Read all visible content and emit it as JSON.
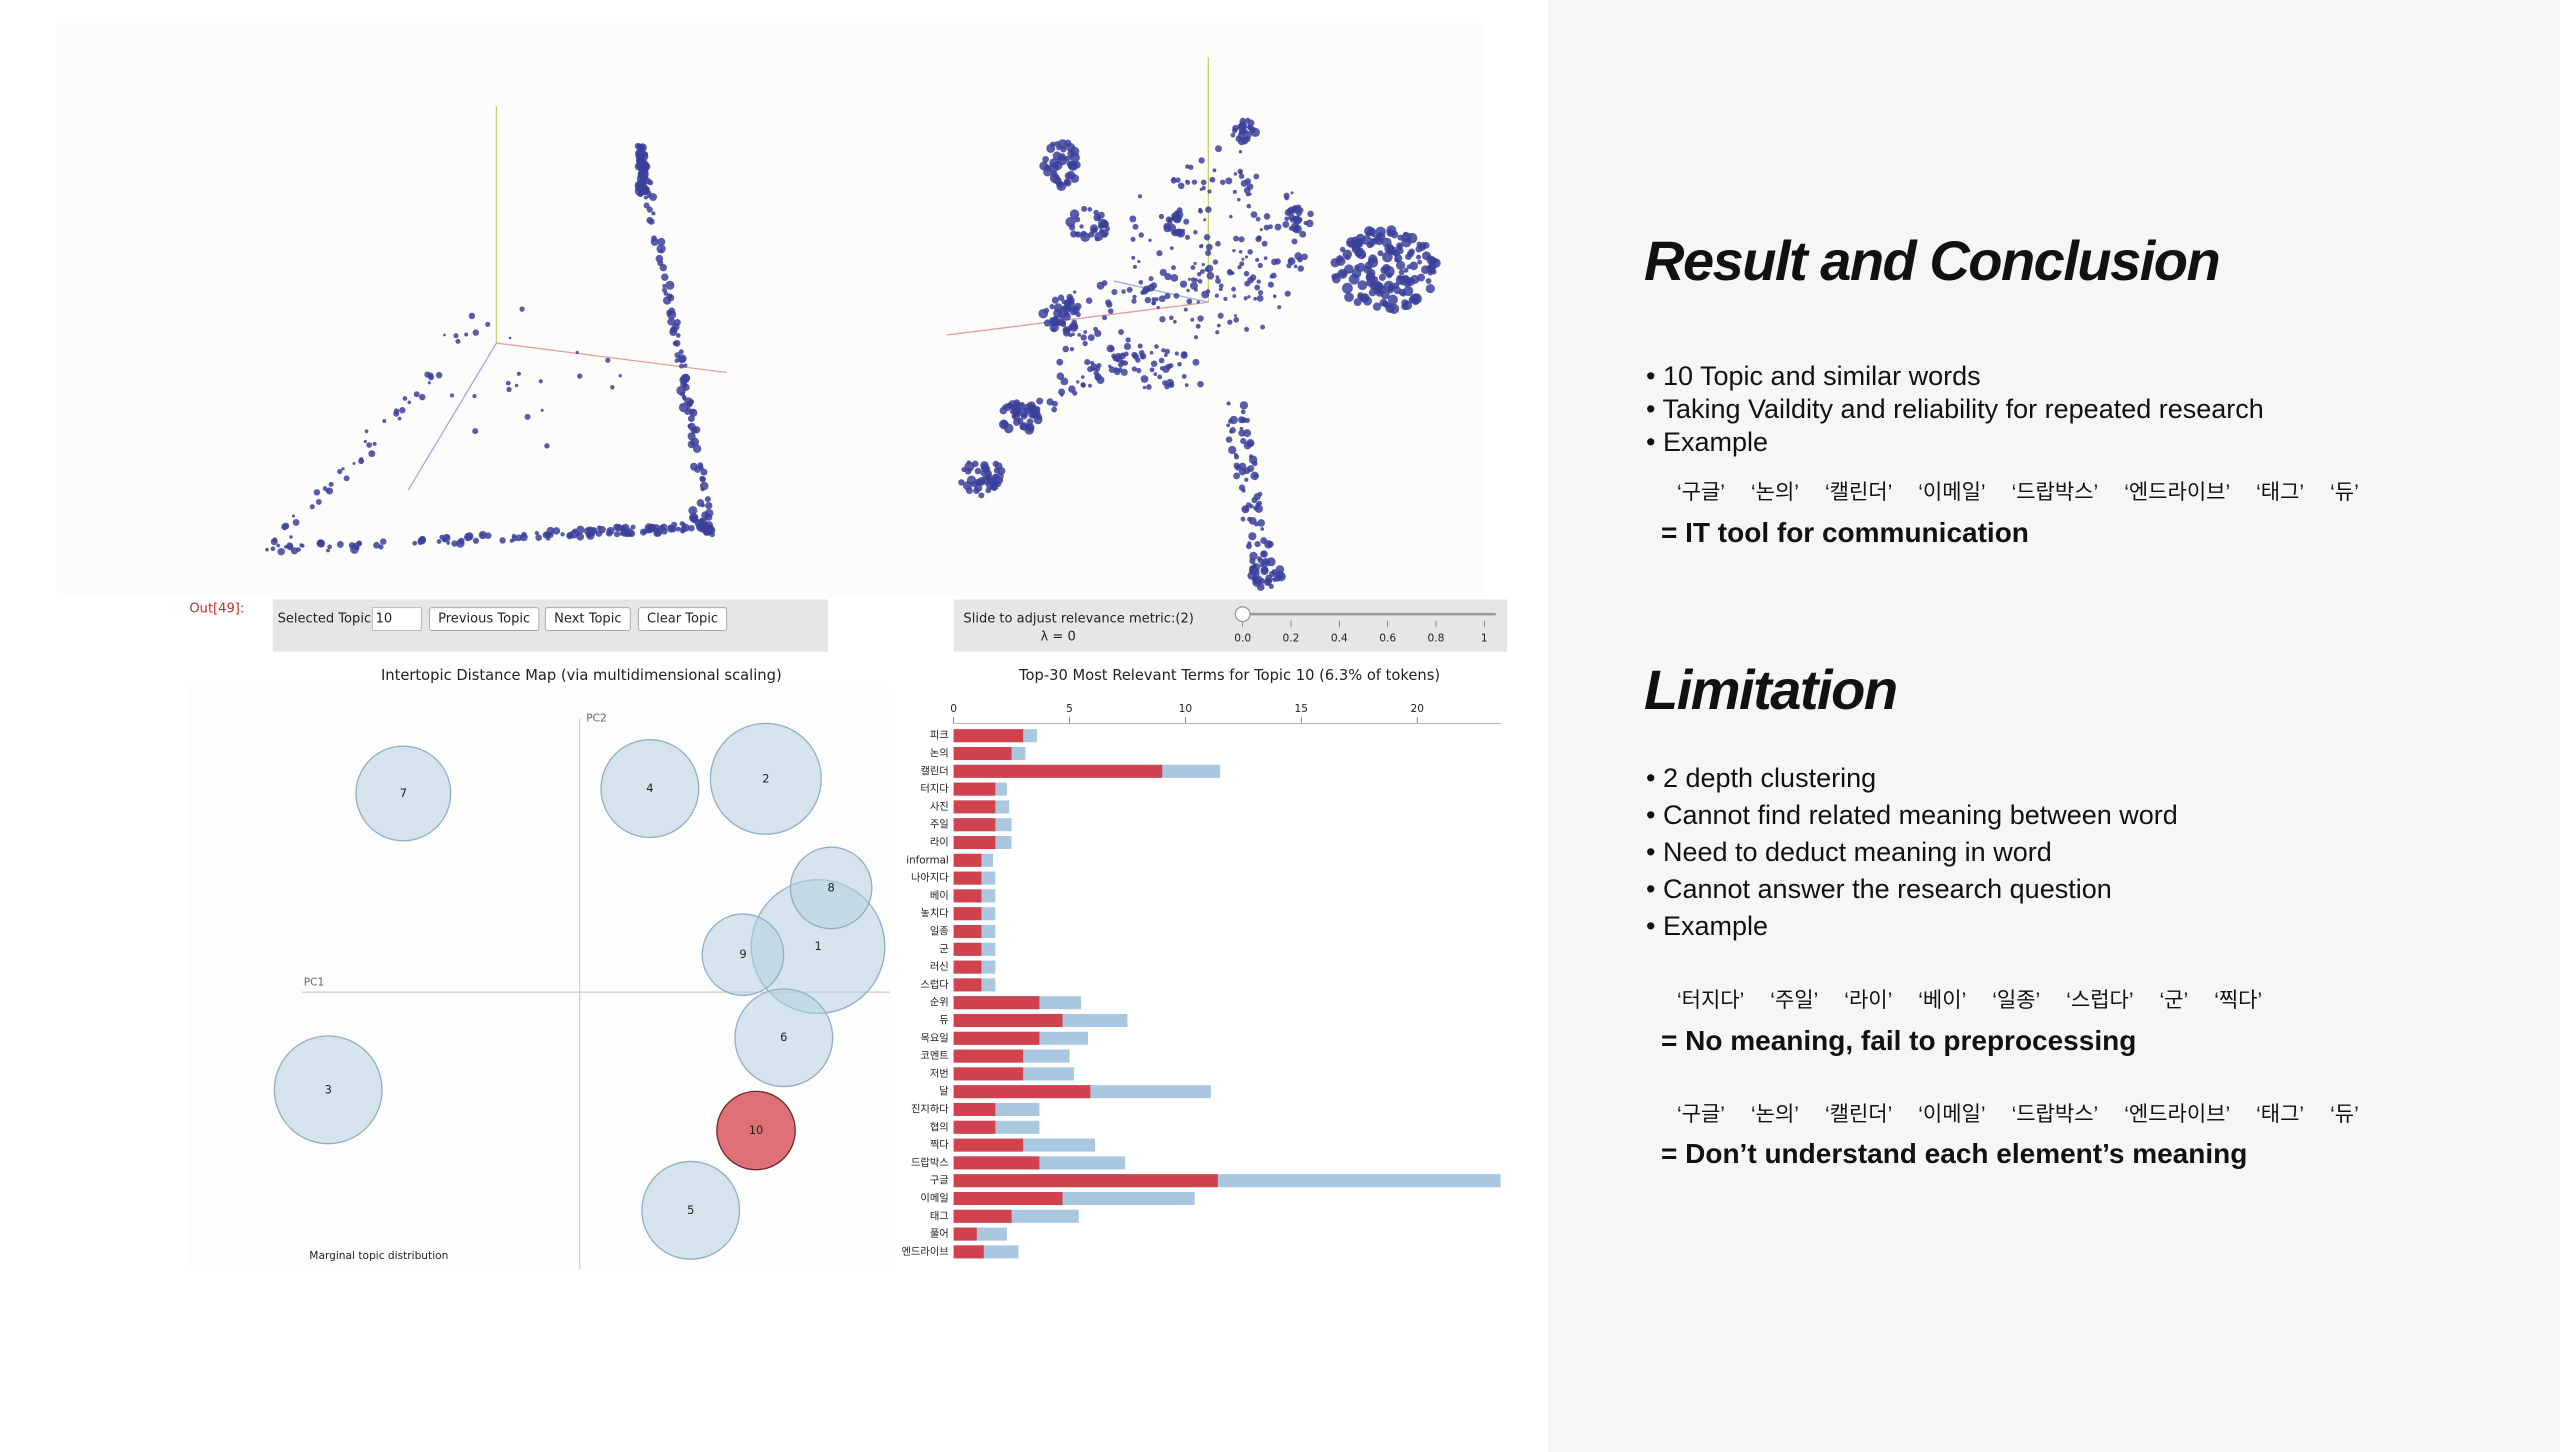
{
  "notebook": {
    "out_label": "Out[49]:"
  },
  "controls": {
    "selected_label": "Selected Topic:",
    "selected_topic": "10",
    "buttons": [
      "Previous Topic",
      "Next Topic",
      "Clear Topic"
    ],
    "slider_label": "Slide to adjust relevance metric:(2)",
    "lambda_label": "λ = 0",
    "slider_ticks": [
      {
        "value": 0,
        "label": "0.0"
      },
      {
        "value": 0.2,
        "label": "0.2"
      },
      {
        "value": 0.4,
        "label": "0.4"
      },
      {
        "value": 0.6,
        "label": "0.6"
      },
      {
        "value": 0.8,
        "label": "0.8"
      },
      1
    ]
  },
  "chart_data": [
    {
      "type": "bubble",
      "title": "Intertopic Distance Map (via multidimensional scaling)",
      "x_label": "PC1",
      "y_label": "PC2",
      "note": "Marginal topic distribution",
      "categories": [
        "1",
        "2",
        "3",
        "4",
        "5",
        "6",
        "7",
        "8",
        "9",
        "10"
      ],
      "x": [
        0.73,
        0.57,
        -0.77,
        0.215,
        0.34,
        0.625,
        -0.54,
        0.77,
        0.5,
        0.54
      ],
      "y": [
        0.14,
        0.655,
        -0.3,
        0.625,
        -0.67,
        -0.14,
        0.61,
        0.32,
        0.115,
        -0.425
      ],
      "size": [
        18.3,
        12.6,
        11.9,
        9.8,
        9.8,
        9.8,
        9.2,
        6.8,
        6.8,
        6.3
      ],
      "color": "#b4d0df",
      "selected_color": "#d9575f",
      "xlim": [
        -1.2,
        0.95
      ],
      "ylim": [
        -0.85,
        0.94
      ]
    },
    {
      "type": "bar",
      "orientation": "horizontal",
      "title": "Top-30 Most Relevant Terms for Topic 10 (6.3% of tokens)",
      "categories": [
        "피크",
        "논의",
        "캘린더",
        "터지다",
        "사진",
        "주일",
        "라이",
        "informal",
        "나아지다",
        "베이",
        "놓치다",
        "일종",
        "군",
        "러신",
        "스럽다",
        "순위",
        "듀",
        "목요일",
        "코멘트",
        "저번",
        "달",
        "진지하다",
        "협의",
        "찍다",
        "드랍박스",
        "구글",
        "이메일",
        "태그",
        "풀어",
        "엔드라이브"
      ],
      "series": [
        {
          "color": "#a9c8e0",
          "values": [
            3.6,
            3.1,
            11.5,
            2.3,
            2.4,
            2.5,
            2.5,
            1.7,
            1.8,
            1.8,
            1.8,
            1.8,
            1.8,
            1.8,
            1.8,
            5.5,
            7.5,
            5.8,
            5.0,
            5.2,
            11.1,
            3.7,
            3.7,
            6.1,
            7.4,
            23.6,
            10.4,
            5.4,
            2.3,
            2.8
          ]
        },
        {
          "color": "#d1424f",
          "values": [
            3.0,
            2.5,
            9.0,
            1.8,
            1.8,
            1.8,
            1.8,
            1.2,
            1.2,
            1.2,
            1.2,
            1.2,
            1.2,
            1.2,
            1.2,
            3.7,
            4.7,
            3.7,
            3.0,
            3.0,
            5.9,
            1.8,
            1.8,
            3.0,
            3.7,
            11.4,
            4.7,
            2.5,
            1.0,
            1.3
          ]
        }
      ],
      "xlim": [
        0,
        23.6
      ],
      "xticks": [
        0,
        5,
        10,
        15,
        20
      ]
    }
  ],
  "slide": {
    "result_title": "Result and Conclusion",
    "result_bullets": [
      "10 Topic and similar words",
      "Taking Vaildity and reliability for repeated research",
      "Example"
    ],
    "result_keywords": [
      "‘구글’",
      "‘논의’",
      "‘캘린더’",
      "‘이메일’",
      "‘드랍박스’",
      "‘엔드라이브’",
      "‘태그’",
      "‘듀’"
    ],
    "result_conclusion": "= IT tool for communication",
    "limitation_title": "Limitation",
    "limitation_bullets": [
      "2 depth clustering",
      "Cannot find related meaning between word",
      "Need to deduct meaning in word",
      "Cannot answer the research question",
      "Example"
    ],
    "limitation_keywords_1": [
      "‘터지다’",
      "‘주일’",
      "‘라이’",
      "‘베이’",
      "‘일종’",
      "‘스럽다’",
      "‘군’",
      "‘찍다’"
    ],
    "limitation_conclusion_1": "= No meaning, fail to preprocessing",
    "limitation_keywords_2": [
      "‘구글’",
      "‘논의’",
      "‘캘린더’",
      "‘이메일’",
      "‘드랍박스’",
      "‘엔드라이브’",
      "‘태그’",
      "‘듀’"
    ],
    "limitation_conclusion_2": "= Don’t understand each element’s meaning"
  }
}
